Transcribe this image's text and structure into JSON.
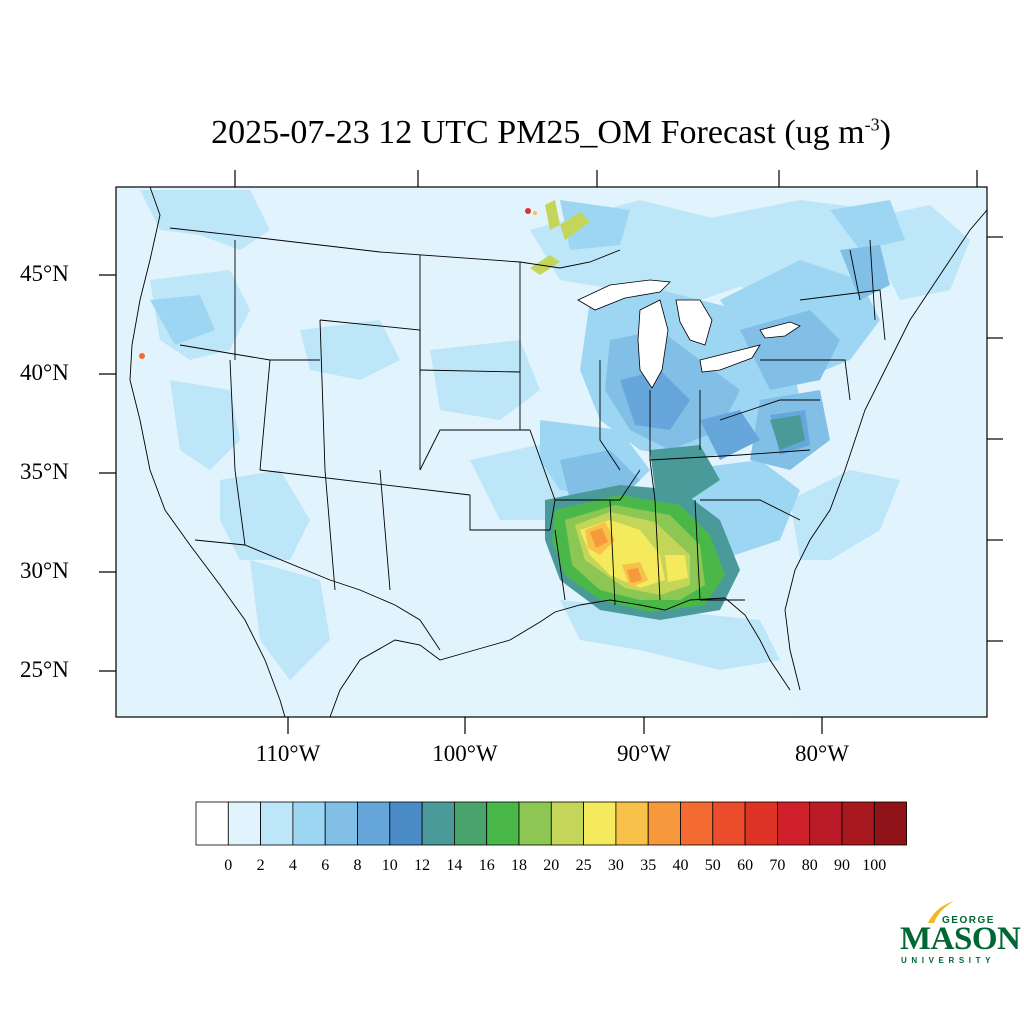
{
  "title": {
    "main": "2025-07-23 12 UTC PM25_OM Forecast (ug m",
    "superscript": "-3",
    "close": ")"
  },
  "map": {
    "lat_labels": [
      "45°N",
      "40°N",
      "35°N",
      "30°N",
      "25°N"
    ],
    "lon_labels": [
      "110°W",
      "100°W",
      "90°W",
      "80°W"
    ],
    "background_color": "#e1f3fc",
    "water_color": "#ffffff"
  },
  "colorbar": {
    "labels": [
      "0",
      "2",
      "4",
      "6",
      "8",
      "10",
      "12",
      "14",
      "16",
      "18",
      "20",
      "25",
      "30",
      "35",
      "40",
      "50",
      "60",
      "70",
      "80",
      "90",
      "100"
    ],
    "colors": [
      "#ffffff",
      "#e1f3fc",
      "#bde6f8",
      "#9dd6f3",
      "#81bfe6",
      "#66a6da",
      "#4a8bc8",
      "#4a9a9a",
      "#48a46c",
      "#4ab849",
      "#8cc653",
      "#c4d65a",
      "#f5e95c",
      "#f8c14a",
      "#f6993d",
      "#f46b31",
      "#eb4d2c",
      "#de3428",
      "#cf1f2a",
      "#bb1b27",
      "#a8191f",
      "#8f1419"
    ]
  },
  "logo": {
    "line1": "GEORGE",
    "line2": "MASON",
    "line3": "UNIVERSITY",
    "color": "#006633",
    "accent": "#f2b81d"
  }
}
